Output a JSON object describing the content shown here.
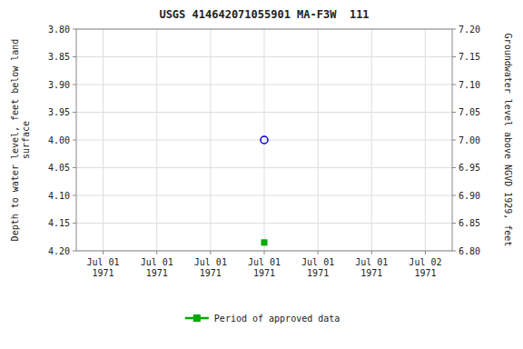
{
  "chart_data": {
    "type": "line",
    "title": "USGS 414642071055901 MA-F3W  111",
    "y_label": "Depth to water level, feet below land\nsurface",
    "y2_label": "Groundwater level above NGVD 1929, feet",
    "categories": [
      "Jul 01\n1971",
      "Jul 01\n1971",
      "Jul 01\n1971",
      "Jul 01\n1971",
      "Jul 01\n1971",
      "Jul 01\n1971",
      "Jul 02\n1971"
    ],
    "series": [
      {
        "type": "scatter",
        "color": "#0000cc",
        "marker": "circle",
        "values": [
          null,
          null,
          null,
          4.0,
          null,
          null,
          null
        ]
      },
      {
        "name": "Period of approved data",
        "type": "line",
        "color": "#00aa00",
        "marker": "square",
        "line_style": "solid",
        "values": [
          null,
          null,
          null,
          4.185,
          null,
          null,
          null
        ]
      }
    ],
    "ylim": [
      4.2,
      3.8
    ],
    "yticks": [
      {
        "value": 3.8,
        "label": "3.80"
      },
      3.85,
      {
        "value": 3.9,
        "label": "3.90"
      },
      3.95,
      {
        "value": 4.0,
        "label": "4.00"
      },
      4.05,
      {
        "value": 4.1,
        "label": "4.10"
      },
      4.15,
      {
        "value": 4.2,
        "label": "4.20"
      }
    ],
    "y2lim": [
      6.8,
      7.2
    ],
    "y2ticks": [
      {
        "value": 7.2,
        "label": "7.20"
      },
      7.15,
      {
        "value": 7.1,
        "label": "7.10"
      },
      7.05,
      {
        "value": 7.0,
        "label": "7.00"
      },
      6.95,
      {
        "value": 6.9,
        "label": "6.90"
      },
      6.85,
      {
        "value": 6.8,
        "label": "6.80"
      }
    ],
    "grid": true,
    "legend": "bottom"
  }
}
